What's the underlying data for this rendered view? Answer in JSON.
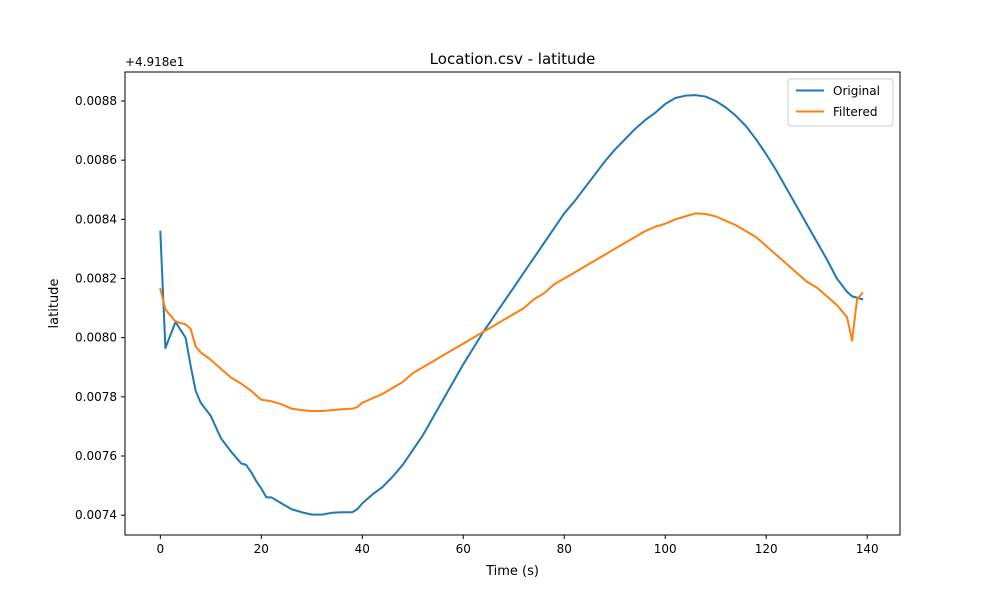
{
  "chart_data": {
    "type": "line",
    "title": "Location.csv - latitude",
    "xlabel": "Time (s)",
    "ylabel": "latitude",
    "y_offset_text": "+4.918e1",
    "xlim": [
      -7,
      146.5
    ],
    "ylim": [
      0.007333,
      0.008898
    ],
    "x_ticks": [
      0,
      20,
      40,
      60,
      80,
      100,
      120,
      140
    ],
    "y_ticks": [
      0.0074,
      0.0076,
      0.0078,
      0.008,
      0.0082,
      0.0084,
      0.0086,
      0.0088
    ],
    "x_tick_labels": [
      "0",
      "20",
      "40",
      "60",
      "80",
      "100",
      "120",
      "140"
    ],
    "y_tick_labels": [
      "0.0074",
      "0.0076",
      "0.0078",
      "0.0080",
      "0.0082",
      "0.0084",
      "0.0086",
      "0.0088"
    ],
    "grid": false,
    "legend_position": "top-right",
    "series": [
      {
        "name": "Original",
        "color": "#1f77b4",
        "x": [
          0,
          1,
          3,
          5,
          6,
          7,
          8,
          10,
          12,
          14,
          16,
          17,
          18,
          19,
          20,
          21,
          22,
          23,
          24,
          26,
          28,
          30,
          32,
          34,
          36,
          38,
          39,
          40,
          42,
          44,
          46,
          48,
          50,
          52,
          54,
          56,
          58,
          60,
          62,
          64,
          66,
          68,
          70,
          72,
          74,
          76,
          78,
          80,
          82,
          84,
          86,
          88,
          90,
          92,
          94,
          96,
          98,
          100,
          102,
          104,
          106,
          108,
          110,
          112,
          114,
          116,
          118,
          120,
          122,
          124,
          126,
          128,
          130,
          132,
          134,
          136,
          137,
          139
        ],
        "values": [
          0.008358,
          0.007965,
          0.008053,
          0.008,
          0.007905,
          0.00782,
          0.00778,
          0.007735,
          0.00766,
          0.007615,
          0.007575,
          0.00757,
          0.007545,
          0.007515,
          0.00749,
          0.00746,
          0.00746,
          0.00745,
          0.00744,
          0.00742,
          0.00741,
          0.007402,
          0.007402,
          0.007408,
          0.00741,
          0.00741,
          0.00742,
          0.00744,
          0.00747,
          0.007495,
          0.00753,
          0.00757,
          0.00762,
          0.00767,
          0.00773,
          0.00779,
          0.00785,
          0.00791,
          0.007965,
          0.00802,
          0.00807,
          0.00812,
          0.00817,
          0.00822,
          0.00827,
          0.00832,
          0.00837,
          0.00842,
          0.00846,
          0.008505,
          0.00855,
          0.008595,
          0.008635,
          0.00867,
          0.008705,
          0.008735,
          0.00876,
          0.00879,
          0.00881,
          0.008818,
          0.00882,
          0.008815,
          0.0088,
          0.008778,
          0.00875,
          0.008715,
          0.00867,
          0.00862,
          0.008565,
          0.008505,
          0.008445,
          0.008385,
          0.008325,
          0.008265,
          0.0082,
          0.008155,
          0.00814,
          0.00813
        ]
      },
      {
        "name": "Filtered",
        "color": "#ff7f0e",
        "x": [
          0,
          1,
          3,
          5,
          6,
          7,
          8,
          10,
          12,
          14,
          16,
          18,
          20,
          22,
          24,
          26,
          28,
          30,
          32,
          34,
          36,
          38,
          39,
          40,
          42,
          44,
          46,
          48,
          50,
          52,
          54,
          56,
          58,
          60,
          62,
          64,
          66,
          68,
          70,
          72,
          74,
          76,
          78,
          80,
          82,
          84,
          86,
          88,
          90,
          92,
          94,
          96,
          98,
          100,
          102,
          104,
          106,
          108,
          110,
          112,
          114,
          116,
          118,
          120,
          122,
          124,
          126,
          128,
          130,
          132,
          134,
          136,
          137,
          138,
          139
        ],
        "values": [
          0.008165,
          0.008095,
          0.008055,
          0.008045,
          0.00803,
          0.00797,
          0.00795,
          0.007925,
          0.007895,
          0.007865,
          0.007845,
          0.00782,
          0.00779,
          0.007785,
          0.007775,
          0.00776,
          0.007755,
          0.007752,
          0.007752,
          0.007755,
          0.007758,
          0.00776,
          0.007765,
          0.00778,
          0.007795,
          0.00781,
          0.00783,
          0.00785,
          0.00788,
          0.0079,
          0.00792,
          0.00794,
          0.00796,
          0.00798,
          0.008,
          0.00802,
          0.00804,
          0.00806,
          0.00808,
          0.0081,
          0.00813,
          0.00815,
          0.00818,
          0.0082,
          0.00822,
          0.00824,
          0.00826,
          0.00828,
          0.0083,
          0.00832,
          0.00834,
          0.00836,
          0.008375,
          0.008385,
          0.0084,
          0.00841,
          0.00842,
          0.008418,
          0.00841,
          0.008395,
          0.00838,
          0.00836,
          0.00834,
          0.00831,
          0.00828,
          0.00825,
          0.00822,
          0.00819,
          0.00817,
          0.00814,
          0.00811,
          0.00807,
          0.00799,
          0.00813,
          0.00815
        ]
      }
    ]
  }
}
